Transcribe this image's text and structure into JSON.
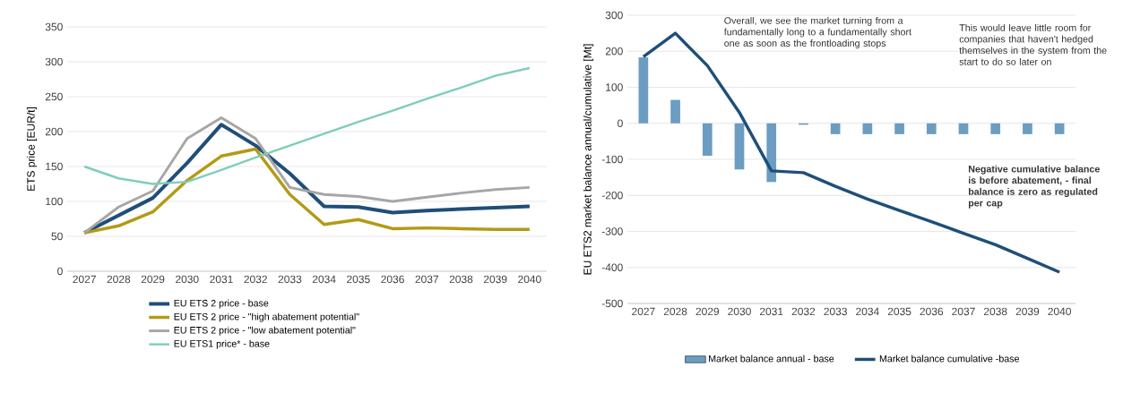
{
  "chart_data": [
    {
      "type": "line",
      "ylabel": "ETS price [EUR/t]",
      "categories": [
        "2027",
        "2028",
        "2029",
        "2030",
        "2031",
        "2032",
        "2033",
        "2034",
        "2035",
        "2036",
        "2037",
        "2038",
        "2039",
        "2040"
      ],
      "series": [
        {
          "name": "EU ETS 2 price - base",
          "color": "#1f4e79",
          "values": [
            55,
            80,
            105,
            155,
            210,
            180,
            140,
            93,
            92,
            84,
            87,
            89,
            91,
            93
          ]
        },
        {
          "name": "EU ETS 2 price - \"high abatement potential\"",
          "color": "#b39a16",
          "values": [
            55,
            65,
            85,
            130,
            165,
            175,
            110,
            67,
            74,
            61,
            62,
            61,
            60,
            60
          ]
        },
        {
          "name": "EU ETS 2 price - \"low abatement potential\"",
          "color": "#a6a6a6",
          "values": [
            55,
            92,
            115,
            190,
            220,
            190,
            120,
            110,
            107,
            100,
            106,
            112,
            117,
            120
          ]
        },
        {
          "name": "EU ETS1 price*  - base",
          "color": "#7fcdbb",
          "values": [
            150,
            133,
            125,
            128,
            145,
            163,
            180,
            197,
            214,
            230,
            247,
            263,
            280,
            291
          ]
        }
      ],
      "ylim": [
        0,
        350
      ],
      "yticks": [
        0,
        50,
        100,
        150,
        200,
        250,
        300,
        350
      ],
      "grid": "y",
      "legend": "bottom",
      "marker": "none",
      "line_style": "solid"
    },
    {
      "type": "bar",
      "ylabel": "EU ETS2 market balance annual/cumulative [Mt]",
      "categories": [
        "2027",
        "2028",
        "2029",
        "2030",
        "2031",
        "2032",
        "2033",
        "2034",
        "2035",
        "2036",
        "2037",
        "2038",
        "2039",
        "2040"
      ],
      "series": [
        {
          "name": "Market balance annual - base",
          "type": "bar",
          "color": "#6b9dc2",
          "values": [
            183,
            65,
            -90,
            -128,
            -163,
            -4,
            -30,
            -30,
            -30,
            -30,
            -30,
            -30,
            -30,
            -30
          ]
        },
        {
          "name": "Market balance cumulative -base",
          "type": "line",
          "color": "#1f4e79",
          "values": [
            185,
            250,
            160,
            30,
            -132,
            -137,
            -175,
            -210,
            -242,
            -273,
            -305,
            -337,
            -375,
            -413
          ]
        }
      ],
      "ylim": [
        -500,
        300
      ],
      "yticks": [
        -500,
        -400,
        -300,
        -200,
        -100,
        0,
        100,
        200,
        300
      ],
      "grid": "y",
      "legend": "bottom",
      "marker": "none",
      "line_style": "solid",
      "annotations": [
        "Overall, we see the market turning from a fundamentally long to a fundamentally short one as soon as the frontloading stops",
        "This would leave little room for companies that haven't hedged themselves in the system from the start to do so later on",
        "Negative cumulative balance is before abatement, - final balance is zero as regulated per cap"
      ]
    }
  ]
}
